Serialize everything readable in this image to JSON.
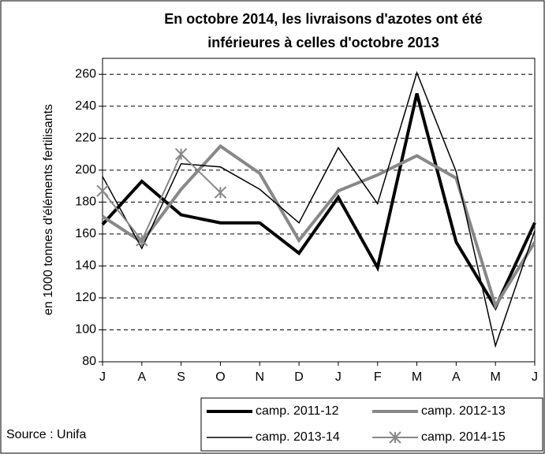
{
  "chart_data": {
    "type": "line",
    "title": [
      "En octobre 2014, les livraisons d'azotes ont été",
      "inférieures à celles d'octobre 2013"
    ],
    "ylabel": "en 1000 tonnes d'éléments fertilisants",
    "source": "Source : Unifa",
    "categories": [
      "J",
      "A",
      "S",
      "O",
      "N",
      "D",
      "J",
      "F",
      "M",
      "A",
      "M",
      "J"
    ],
    "ylim": [
      80,
      270
    ],
    "yticks": [
      80,
      100,
      120,
      140,
      160,
      180,
      200,
      220,
      240,
      260
    ],
    "grid": true,
    "series": [
      {
        "name": "camp. 2011-12",
        "color": "#000000",
        "width": 4,
        "values": [
          166,
          193,
          172,
          167,
          167,
          148,
          183,
          139,
          248,
          155,
          114,
          167
        ]
      },
      {
        "name": "camp. 2012-13",
        "color": "#888888",
        "width": 4,
        "values": [
          171,
          155,
          188,
          215,
          198,
          156,
          187,
          197,
          209,
          195,
          115,
          155
        ]
      },
      {
        "name": "camp. 2013-14",
        "color": "#000000",
        "width": 1.5,
        "values": [
          196,
          151,
          204,
          202,
          188,
          167,
          214,
          179,
          261,
          199,
          90,
          162
        ]
      },
      {
        "name": "camp. 2014-15",
        "color": "#888888",
        "width": 2,
        "marker": "star",
        "values": [
          187,
          156,
          210,
          186,
          null,
          null,
          null,
          null,
          null,
          null,
          null,
          null
        ]
      }
    ]
  }
}
